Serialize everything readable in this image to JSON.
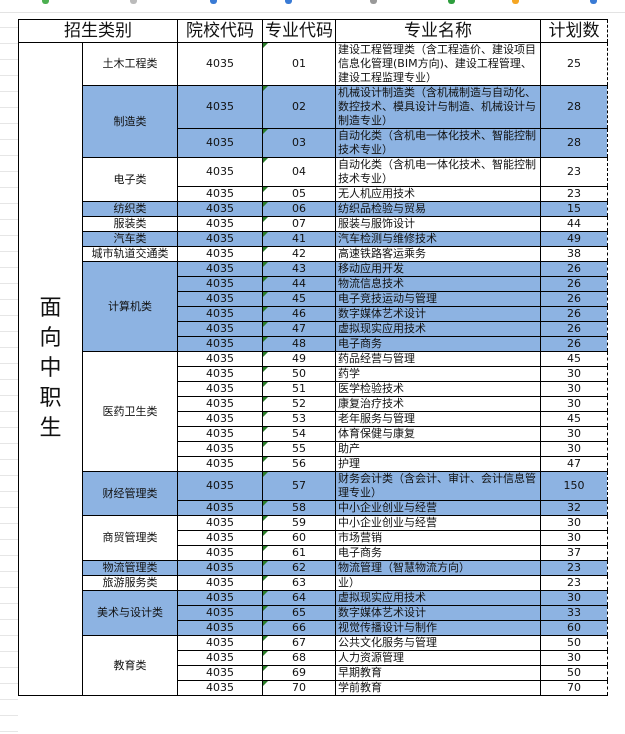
{
  "colors": {
    "highlight": "#8db3e2",
    "code_marker": "#2a7d2a"
  },
  "table": {
    "headers": {
      "category": "招生类别",
      "school_code": "院校代码",
      "major_code": "专业代码",
      "major_name": "专业名称",
      "plan": "计划数"
    },
    "audience": "面向中职生",
    "groups": [
      {
        "category": "土木工程类",
        "highlight": false,
        "rows": [
          {
            "school_code": "4035",
            "major_code": "01",
            "major_name": "建设工程管理类（含工程造价、建设项目信息化管理(BIM方向)、建设工程管理、建设工程监理专业）",
            "plan": "25",
            "lines": 3
          }
        ]
      },
      {
        "category": "制造类",
        "highlight": true,
        "rows": [
          {
            "school_code": "4035",
            "major_code": "02",
            "major_name": "机械设计制造类（含机械制造与自动化、数控技术、模具设计与制造、机械设计与制造专业）",
            "plan": "28",
            "lines": 3
          },
          {
            "school_code": "4035",
            "major_code": "03",
            "major_name": "自动化类（含机电一体化技术、智能控制技术专业）",
            "plan": "28",
            "lines": 2
          }
        ]
      },
      {
        "category": "电子类",
        "highlight": false,
        "rows": [
          {
            "school_code": "4035",
            "major_code": "04",
            "major_name": "自动化类（含机电一体化技术、智能控制技术专业）",
            "plan": "23",
            "lines": 2
          },
          {
            "school_code": "4035",
            "major_code": "05",
            "major_name": "无人机应用技术",
            "plan": "23",
            "lines": 1
          }
        ]
      },
      {
        "category": "纺织类",
        "highlight": true,
        "rows": [
          {
            "school_code": "4035",
            "major_code": "06",
            "major_name": "纺织品检验与贸易",
            "plan": "15",
            "lines": 1
          }
        ]
      },
      {
        "category": "服装类",
        "highlight": false,
        "rows": [
          {
            "school_code": "4035",
            "major_code": "07",
            "major_name": "服装与服饰设计",
            "plan": "44",
            "lines": 1
          }
        ]
      },
      {
        "category": "汽车类",
        "highlight": true,
        "rows": [
          {
            "school_code": "4035",
            "major_code": "41",
            "major_name": "汽车检测与维修技术",
            "plan": "49",
            "lines": 1
          }
        ]
      },
      {
        "category": "城市轨道交通类",
        "highlight": false,
        "rows": [
          {
            "school_code": "4035",
            "major_code": "42",
            "major_name": "高速铁路客运乘务",
            "plan": "38",
            "lines": 1
          }
        ]
      },
      {
        "category": "计算机类",
        "highlight": true,
        "rows": [
          {
            "school_code": "4035",
            "major_code": "43",
            "major_name": "移动应用开发",
            "plan": "26",
            "lines": 1
          },
          {
            "school_code": "4035",
            "major_code": "44",
            "major_name": "物流信息技术",
            "plan": "26",
            "lines": 1
          },
          {
            "school_code": "4035",
            "major_code": "45",
            "major_name": "电子竞技运动与管理",
            "plan": "26",
            "lines": 1
          },
          {
            "school_code": "4035",
            "major_code": "46",
            "major_name": "数字媒体艺术设计",
            "plan": "26",
            "lines": 1
          },
          {
            "school_code": "4035",
            "major_code": "47",
            "major_name": "虚拟现实应用技术",
            "plan": "26",
            "lines": 1
          },
          {
            "school_code": "4035",
            "major_code": "48",
            "major_name": "电子商务",
            "plan": "26",
            "lines": 1
          }
        ]
      },
      {
        "category": "医药卫生类",
        "highlight": false,
        "rows": [
          {
            "school_code": "4035",
            "major_code": "49",
            "major_name": "药品经营与管理",
            "plan": "45",
            "lines": 1
          },
          {
            "school_code": "4035",
            "major_code": "50",
            "major_name": "药学",
            "plan": "30",
            "lines": 1
          },
          {
            "school_code": "4035",
            "major_code": "51",
            "major_name": "医学检验技术",
            "plan": "30",
            "lines": 1
          },
          {
            "school_code": "4035",
            "major_code": "52",
            "major_name": "康复治疗技术",
            "plan": "30",
            "lines": 1
          },
          {
            "school_code": "4035",
            "major_code": "53",
            "major_name": "老年服务与管理",
            "plan": "45",
            "lines": 1
          },
          {
            "school_code": "4035",
            "major_code": "54",
            "major_name": "体育保健与康复",
            "plan": "30",
            "lines": 1
          },
          {
            "school_code": "4035",
            "major_code": "55",
            "major_name": "助产",
            "plan": "30",
            "lines": 1
          },
          {
            "school_code": "4035",
            "major_code": "56",
            "major_name": "护理",
            "plan": "47",
            "lines": 1
          }
        ]
      },
      {
        "category": "财经管理类",
        "highlight": true,
        "rows": [
          {
            "school_code": "4035",
            "major_code": "57",
            "major_name": "财务会计类（含会计、审计、会计信息管理专业）",
            "plan": "150",
            "lines": 2
          },
          {
            "school_code": "4035",
            "major_code": "58",
            "major_name": "中小企业创业与经营",
            "plan": "32",
            "lines": 1
          }
        ]
      },
      {
        "category": "商贸管理类",
        "highlight": false,
        "rows": [
          {
            "school_code": "4035",
            "major_code": "59",
            "major_name": "中小企业创业与经营",
            "plan": "30",
            "lines": 1
          },
          {
            "school_code": "4035",
            "major_code": "60",
            "major_name": "市场营销",
            "plan": "30",
            "lines": 1
          },
          {
            "school_code": "4035",
            "major_code": "61",
            "major_name": "电子商务",
            "plan": "37",
            "lines": 1
          }
        ]
      },
      {
        "category": "物流管理类",
        "highlight": true,
        "rows": [
          {
            "school_code": "4035",
            "major_code": "62",
            "major_name": "物流管理（智慧物流方向）",
            "plan": "23",
            "lines": 1
          }
        ]
      },
      {
        "category": "旅游服务类",
        "highlight": false,
        "rows": [
          {
            "school_code": "4035",
            "major_code": "63",
            "major_name": "业）",
            "plan": "23",
            "lines": 1
          }
        ]
      },
      {
        "category": "美术与设计类",
        "highlight": true,
        "rows": [
          {
            "school_code": "4035",
            "major_code": "64",
            "major_name": "虚拟现实应用技术",
            "plan": "30",
            "lines": 1
          },
          {
            "school_code": "4035",
            "major_code": "65",
            "major_name": "数字媒体艺术设计",
            "plan": "33",
            "lines": 1
          },
          {
            "school_code": "4035",
            "major_code": "66",
            "major_name": "视觉传播设计与制作",
            "plan": "60",
            "lines": 1
          }
        ]
      },
      {
        "category": "教育类",
        "highlight": false,
        "rows": [
          {
            "school_code": "4035",
            "major_code": "67",
            "major_name": "公共文化服务与管理",
            "plan": "50",
            "lines": 1
          },
          {
            "school_code": "4035",
            "major_code": "68",
            "major_name": "人力资源管理",
            "plan": "30",
            "lines": 1
          },
          {
            "school_code": "4035",
            "major_code": "69",
            "major_name": "早期教育",
            "plan": "50",
            "lines": 1
          },
          {
            "school_code": "4035",
            "major_code": "70",
            "major_name": "学前教育",
            "plan": "70",
            "lines": 1
          }
        ]
      }
    ]
  }
}
